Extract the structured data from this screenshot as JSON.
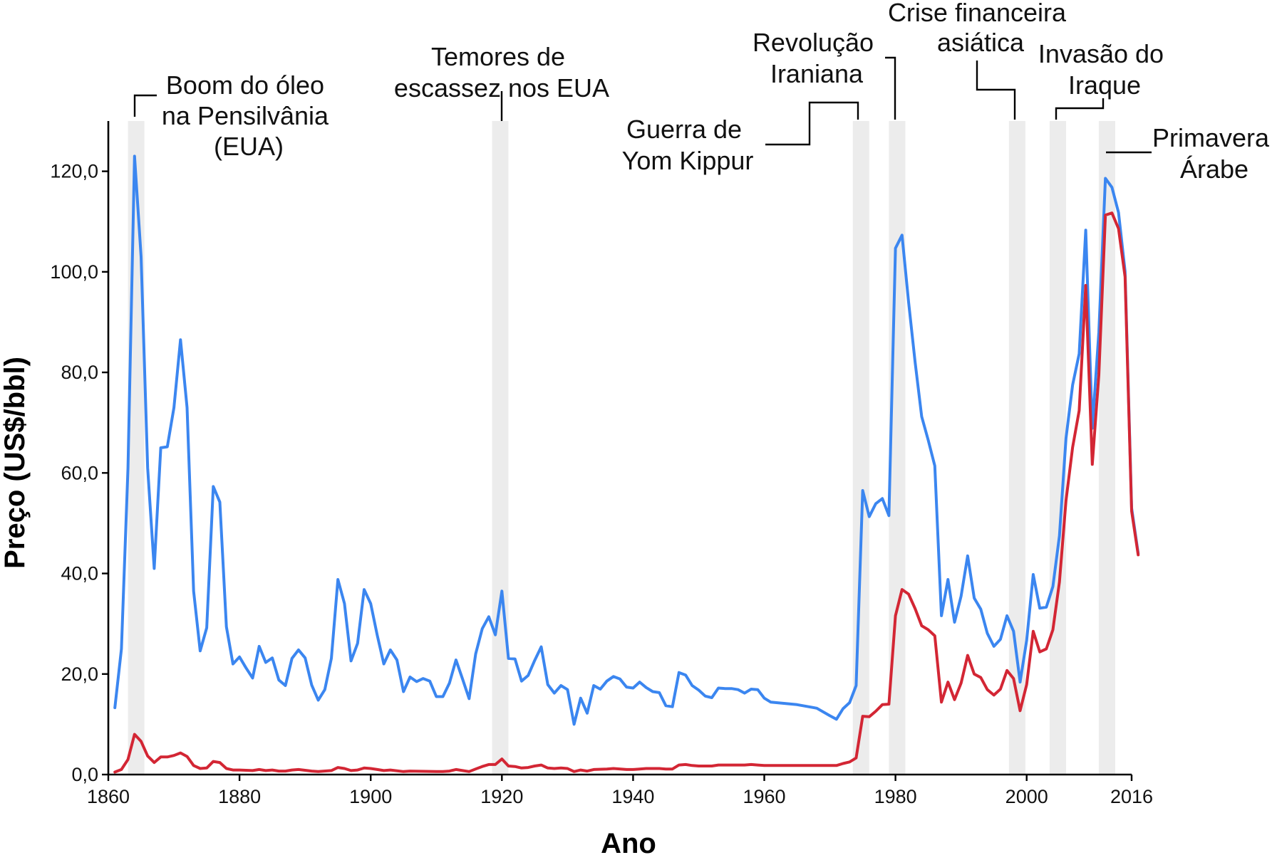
{
  "chart_data": {
    "type": "line",
    "xlabel": "Ano",
    "ylabel": "Preço (US$/bbl)",
    "xlim": [
      1860,
      2016
    ],
    "ylim": [
      0,
      130
    ],
    "x_ticks": [
      {
        "value": 1860,
        "label": "1860"
      },
      {
        "value": 1880,
        "label": "1880"
      },
      {
        "value": 1900,
        "label": "1900"
      },
      {
        "value": 1920,
        "label": "1920"
      },
      {
        "value": 1940,
        "label": "1940"
      },
      {
        "value": 1960,
        "label": "1960"
      },
      {
        "value": 1980,
        "label": "1980"
      },
      {
        "value": 2000,
        "label": "2000"
      },
      {
        "value": 2016,
        "label": "2016"
      }
    ],
    "y_ticks": [
      {
        "value": 0,
        "label": "0,0"
      },
      {
        "value": 20,
        "label": "20,0"
      },
      {
        "value": 40,
        "label": "40,0"
      },
      {
        "value": 60,
        "label": "60,0"
      },
      {
        "value": 80,
        "label": "80,0"
      },
      {
        "value": 100,
        "label": "100,0"
      },
      {
        "value": 120,
        "label": "120,0"
      }
    ],
    "series": [
      {
        "color": "#3b86f0",
        "points": [
          [
            1861,
            13.3
          ],
          [
            1862,
            25
          ],
          [
            1863,
            61
          ],
          [
            1864,
            123
          ],
          [
            1865,
            103
          ],
          [
            1866,
            61
          ],
          [
            1867,
            41
          ],
          [
            1868,
            65
          ],
          [
            1869,
            65.2
          ],
          [
            1870,
            73
          ],
          [
            1871,
            86.5
          ],
          [
            1872,
            73
          ],
          [
            1873,
            36.5
          ],
          [
            1874,
            24.6
          ],
          [
            1875,
            29.2
          ],
          [
            1876,
            57.3
          ],
          [
            1877,
            54.2
          ],
          [
            1878,
            29.4
          ],
          [
            1879,
            22
          ],
          [
            1880,
            23.4
          ],
          [
            1881,
            21.2
          ],
          [
            1882,
            19.2
          ],
          [
            1883,
            25.5
          ],
          [
            1884,
            22.3
          ],
          [
            1885,
            23.2
          ],
          [
            1886,
            18.8
          ],
          [
            1887,
            17.7
          ],
          [
            1888,
            23.1
          ],
          [
            1889,
            24.8
          ],
          [
            1890,
            23.2
          ],
          [
            1891,
            17.8
          ],
          [
            1892,
            14.8
          ],
          [
            1893,
            16.9
          ],
          [
            1894,
            23.1
          ],
          [
            1895,
            38.8
          ],
          [
            1896,
            34
          ],
          [
            1897,
            22.6
          ],
          [
            1898,
            26.1
          ],
          [
            1899,
            36.8
          ],
          [
            1900,
            34
          ],
          [
            1901,
            27.7
          ],
          [
            1902,
            22
          ],
          [
            1903,
            24.8
          ],
          [
            1904,
            22.8
          ],
          [
            1905,
            16.5
          ],
          [
            1906,
            19.4
          ],
          [
            1907,
            18.5
          ],
          [
            1908,
            19.1
          ],
          [
            1909,
            18.6
          ],
          [
            1910,
            15.5
          ],
          [
            1911,
            15.5
          ],
          [
            1912,
            18.2
          ],
          [
            1913,
            22.8
          ],
          [
            1914,
            19
          ],
          [
            1915,
            15.1
          ],
          [
            1916,
            24
          ],
          [
            1917,
            29
          ],
          [
            1918,
            31.4
          ],
          [
            1919,
            27.8
          ],
          [
            1920,
            36.5
          ],
          [
            1921,
            23.1
          ],
          [
            1922,
            23
          ],
          [
            1923,
            18.6
          ],
          [
            1924,
            19.7
          ],
          [
            1925,
            22.7
          ],
          [
            1926,
            25.4
          ],
          [
            1927,
            17.9
          ],
          [
            1928,
            16.2
          ],
          [
            1929,
            17.7
          ],
          [
            1930,
            16.9
          ],
          [
            1931,
            10
          ],
          [
            1932,
            15.2
          ],
          [
            1933,
            12.2
          ],
          [
            1934,
            17.7
          ],
          [
            1935,
            17
          ],
          [
            1936,
            18.6
          ],
          [
            1937,
            19.5
          ],
          [
            1938,
            19
          ],
          [
            1939,
            17.4
          ],
          [
            1940,
            17.2
          ],
          [
            1941,
            18.4
          ],
          [
            1942,
            17.3
          ],
          [
            1943,
            16.5
          ],
          [
            1944,
            16.3
          ],
          [
            1945,
            13.7
          ],
          [
            1946,
            13.5
          ],
          [
            1947,
            20.3
          ],
          [
            1948,
            19.8
          ],
          [
            1949,
            17.7
          ],
          [
            1950,
            16.8
          ],
          [
            1951,
            15.6
          ],
          [
            1952,
            15.3
          ],
          [
            1953,
            17.2
          ],
          [
            1954,
            17.1
          ],
          [
            1955,
            17.1
          ],
          [
            1956,
            16.9
          ],
          [
            1957,
            16.2
          ],
          [
            1958,
            17
          ],
          [
            1959,
            16.9
          ],
          [
            1960,
            15.2
          ],
          [
            1961,
            14.4
          ],
          [
            1965,
            13.9
          ],
          [
            1968,
            13.2
          ],
          [
            1970,
            11.7
          ],
          [
            1971,
            11
          ],
          [
            1972,
            13.1
          ],
          [
            1973,
            14.3
          ],
          [
            1974,
            17.7
          ],
          [
            1975,
            56.5
          ],
          [
            1976,
            51.3
          ],
          [
            1977,
            53.9
          ],
          [
            1978,
            54.9
          ],
          [
            1979,
            51.5
          ],
          [
            1980,
            104.7
          ],
          [
            1981,
            107.3
          ],
          [
            1982,
            94
          ],
          [
            1983,
            82
          ],
          [
            1984,
            71.2
          ],
          [
            1985,
            66.5
          ],
          [
            1986,
            61.4
          ],
          [
            1987,
            31.6
          ],
          [
            1988,
            38.8
          ],
          [
            1989,
            30.3
          ],
          [
            1990,
            35.5
          ],
          [
            1991,
            43.5
          ],
          [
            1992,
            35.1
          ],
          [
            1993,
            32.9
          ],
          [
            1994,
            28.1
          ],
          [
            1995,
            25.5
          ],
          [
            1996,
            26.9
          ],
          [
            1997,
            31.6
          ],
          [
            1998,
            28.5
          ],
          [
            1999,
            18.4
          ],
          [
            2000,
            26.7
          ],
          [
            2001,
            39.8
          ],
          [
            2002,
            33.1
          ],
          [
            2003,
            33.3
          ],
          [
            2004,
            37.4
          ],
          [
            2005,
            47.5
          ],
          [
            2006,
            66.9
          ],
          [
            2007,
            77.5
          ],
          [
            2008,
            83.7
          ],
          [
            2009,
            108.3
          ],
          [
            2010,
            68.9
          ],
          [
            2011,
            88
          ],
          [
            2012,
            118.6
          ],
          [
            2013,
            116.8
          ],
          [
            2014,
            111.8
          ],
          [
            2015,
            100.1
          ],
          [
            2016,
            53
          ],
          [
            2017,
            44
          ]
        ]
      },
      {
        "color": "#d32634",
        "points": [
          [
            1861,
            0.5
          ],
          [
            1862,
            1
          ],
          [
            1863,
            3
          ],
          [
            1864,
            8
          ],
          [
            1865,
            6.6
          ],
          [
            1866,
            3.7
          ],
          [
            1867,
            2.4
          ],
          [
            1868,
            3.5
          ],
          [
            1869,
            3.5
          ],
          [
            1870,
            3.8
          ],
          [
            1871,
            4.3
          ],
          [
            1872,
            3.6
          ],
          [
            1873,
            1.8
          ],
          [
            1874,
            1.2
          ],
          [
            1875,
            1.3
          ],
          [
            1876,
            2.6
          ],
          [
            1877,
            2.4
          ],
          [
            1878,
            1.2
          ],
          [
            1879,
            0.9
          ],
          [
            1880,
            0.9
          ],
          [
            1882,
            0.8
          ],
          [
            1883,
            1
          ],
          [
            1884,
            0.8
          ],
          [
            1885,
            0.9
          ],
          [
            1886,
            0.7
          ],
          [
            1887,
            0.7
          ],
          [
            1888,
            0.9
          ],
          [
            1889,
            1
          ],
          [
            1891,
            0.7
          ],
          [
            1892,
            0.6
          ],
          [
            1894,
            0.8
          ],
          [
            1895,
            1.4
          ],
          [
            1896,
            1.2
          ],
          [
            1897,
            0.8
          ],
          [
            1898,
            0.9
          ],
          [
            1899,
            1.3
          ],
          [
            1900,
            1.2
          ],
          [
            1901,
            1
          ],
          [
            1902,
            0.8
          ],
          [
            1903,
            0.9
          ],
          [
            1905,
            0.6
          ],
          [
            1906,
            0.7
          ],
          [
            1910,
            0.6
          ],
          [
            1911,
            0.6
          ],
          [
            1912,
            0.7
          ],
          [
            1913,
            1
          ],
          [
            1914,
            0.8
          ],
          [
            1915,
            0.6
          ],
          [
            1916,
            1.1
          ],
          [
            1917,
            1.6
          ],
          [
            1918,
            2
          ],
          [
            1919,
            2
          ],
          [
            1920,
            3.1
          ],
          [
            1921,
            1.7
          ],
          [
            1922,
            1.6
          ],
          [
            1923,
            1.3
          ],
          [
            1924,
            1.4
          ],
          [
            1925,
            1.7
          ],
          [
            1926,
            1.9
          ],
          [
            1927,
            1.3
          ],
          [
            1928,
            1.2
          ],
          [
            1929,
            1.3
          ],
          [
            1930,
            1.2
          ],
          [
            1931,
            0.6
          ],
          [
            1932,
            0.9
          ],
          [
            1933,
            0.7
          ],
          [
            1934,
            1
          ],
          [
            1936,
            1.1
          ],
          [
            1937,
            1.2
          ],
          [
            1939,
            1
          ],
          [
            1940,
            1
          ],
          [
            1941,
            1.1
          ],
          [
            1942,
            1.2
          ],
          [
            1944,
            1.2
          ],
          [
            1945,
            1.1
          ],
          [
            1946,
            1.1
          ],
          [
            1947,
            1.9
          ],
          [
            1948,
            2
          ],
          [
            1949,
            1.8
          ],
          [
            1950,
            1.7
          ],
          [
            1952,
            1.7
          ],
          [
            1953,
            1.9
          ],
          [
            1957,
            1.9
          ],
          [
            1958,
            2
          ],
          [
            1959,
            1.9
          ],
          [
            1960,
            1.8
          ],
          [
            1965,
            1.8
          ],
          [
            1970,
            1.8
          ],
          [
            1971,
            1.8
          ],
          [
            1972,
            2.2
          ],
          [
            1973,
            2.5
          ],
          [
            1974,
            3.3
          ],
          [
            1975,
            11.6
          ],
          [
            1976,
            11.5
          ],
          [
            1977,
            12.6
          ],
          [
            1978,
            13.9
          ],
          [
            1979,
            14
          ],
          [
            1980,
            31.6
          ],
          [
            1981,
            36.8
          ],
          [
            1982,
            35.9
          ],
          [
            1983,
            33
          ],
          [
            1984,
            29.6
          ],
          [
            1985,
            28.8
          ],
          [
            1986,
            27.6
          ],
          [
            1987,
            14.4
          ],
          [
            1988,
            18.4
          ],
          [
            1989,
            14.9
          ],
          [
            1990,
            18.2
          ],
          [
            1991,
            23.7
          ],
          [
            1992,
            20
          ],
          [
            1993,
            19.3
          ],
          [
            1994,
            16.9
          ],
          [
            1995,
            15.8
          ],
          [
            1996,
            17
          ],
          [
            1997,
            20.7
          ],
          [
            1998,
            19.1
          ],
          [
            1999,
            12.7
          ],
          [
            2000,
            17.9
          ],
          [
            2001,
            28.5
          ],
          [
            2002,
            24.4
          ],
          [
            2003,
            25
          ],
          [
            2004,
            28.8
          ],
          [
            2005,
            38.3
          ],
          [
            2006,
            54.5
          ],
          [
            2007,
            65.1
          ],
          [
            2008,
            72.4
          ],
          [
            2009,
            97.3
          ],
          [
            2010,
            61.7
          ],
          [
            2011,
            79.5
          ],
          [
            2012,
            111.3
          ],
          [
            2013,
            111.7
          ],
          [
            2014,
            108.6
          ],
          [
            2015,
            99
          ],
          [
            2016,
            52.4
          ],
          [
            2017,
            43.7
          ]
        ]
      }
    ],
    "highlight_bands": [
      [
        1863,
        1865.5
      ],
      [
        1918.5,
        1921
      ],
      [
        1973.5,
        1976
      ],
      [
        1979,
        1981.5
      ],
      [
        1997.3,
        1999.8
      ],
      [
        2003.5,
        2006
      ],
      [
        2011,
        2013.5
      ]
    ],
    "annotations": [
      {
        "lines": [
          "Boom do óleo",
          "na Pensilvânia",
          "(EUA)"
        ]
      },
      {
        "lines": [
          "Temores de",
          "escassez nos EUA"
        ]
      },
      {
        "lines": [
          "Guerra de",
          "Yom Kippur"
        ]
      },
      {
        "lines": [
          "Revolução",
          "Iraniana"
        ]
      },
      {
        "lines": [
          "Crise financeira",
          "asiática"
        ]
      },
      {
        "lines": [
          "Invasão do",
          "Iraque"
        ]
      },
      {
        "lines": [
          "Primavera",
          "Árabe"
        ]
      }
    ]
  }
}
